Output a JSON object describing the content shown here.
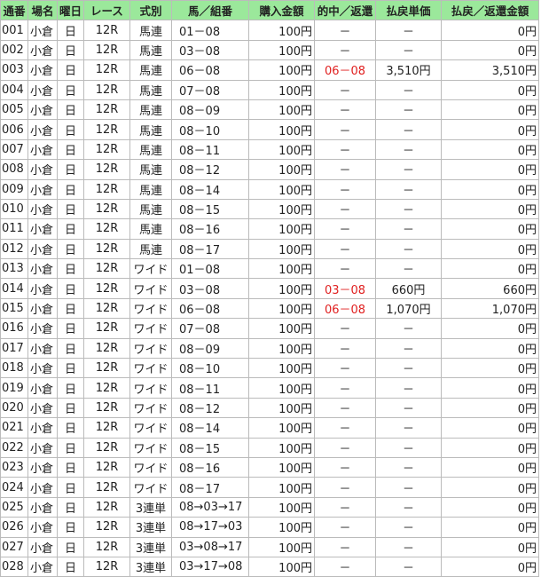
{
  "table": {
    "headers": [
      "通番",
      "場名",
      "曜日",
      "レース",
      "式別",
      "馬／組番",
      "購入金額",
      "的中／返還",
      "払戻単価",
      "払戻／返還金額"
    ],
    "rows": [
      [
        "001",
        "小倉",
        "日",
        "12R",
        "馬連",
        "01－08",
        "100円",
        "－",
        "－",
        "0円"
      ],
      [
        "002",
        "小倉",
        "日",
        "12R",
        "馬連",
        "03－08",
        "100円",
        "－",
        "－",
        "0円"
      ],
      [
        "003",
        "小倉",
        "日",
        "12R",
        "馬連",
        "06－08",
        "100円",
        "06－08",
        "3,510円",
        "3,510円"
      ],
      [
        "004",
        "小倉",
        "日",
        "12R",
        "馬連",
        "07－08",
        "100円",
        "－",
        "－",
        "0円"
      ],
      [
        "005",
        "小倉",
        "日",
        "12R",
        "馬連",
        "08－09",
        "100円",
        "－",
        "－",
        "0円"
      ],
      [
        "006",
        "小倉",
        "日",
        "12R",
        "馬連",
        "08－10",
        "100円",
        "－",
        "－",
        "0円"
      ],
      [
        "007",
        "小倉",
        "日",
        "12R",
        "馬連",
        "08－11",
        "100円",
        "－",
        "－",
        "0円"
      ],
      [
        "008",
        "小倉",
        "日",
        "12R",
        "馬連",
        "08－12",
        "100円",
        "－",
        "－",
        "0円"
      ],
      [
        "009",
        "小倉",
        "日",
        "12R",
        "馬連",
        "08－14",
        "100円",
        "－",
        "－",
        "0円"
      ],
      [
        "010",
        "小倉",
        "日",
        "12R",
        "馬連",
        "08－15",
        "100円",
        "－",
        "－",
        "0円"
      ],
      [
        "011",
        "小倉",
        "日",
        "12R",
        "馬連",
        "08－16",
        "100円",
        "－",
        "－",
        "0円"
      ],
      [
        "012",
        "小倉",
        "日",
        "12R",
        "馬連",
        "08－17",
        "100円",
        "－",
        "－",
        "0円"
      ],
      [
        "013",
        "小倉",
        "日",
        "12R",
        "ワイド",
        "01－08",
        "100円",
        "－",
        "－",
        "0円"
      ],
      [
        "014",
        "小倉",
        "日",
        "12R",
        "ワイド",
        "03－08",
        "100円",
        "03－08",
        "660円",
        "660円"
      ],
      [
        "015",
        "小倉",
        "日",
        "12R",
        "ワイド",
        "06－08",
        "100円",
        "06－08",
        "1,070円",
        "1,070円"
      ],
      [
        "016",
        "小倉",
        "日",
        "12R",
        "ワイド",
        "07－08",
        "100円",
        "－",
        "－",
        "0円"
      ],
      [
        "017",
        "小倉",
        "日",
        "12R",
        "ワイド",
        "08－09",
        "100円",
        "－",
        "－",
        "0円"
      ],
      [
        "018",
        "小倉",
        "日",
        "12R",
        "ワイド",
        "08－10",
        "100円",
        "－",
        "－",
        "0円"
      ],
      [
        "019",
        "小倉",
        "日",
        "12R",
        "ワイド",
        "08－11",
        "100円",
        "－",
        "－",
        "0円"
      ],
      [
        "020",
        "小倉",
        "日",
        "12R",
        "ワイド",
        "08－12",
        "100円",
        "－",
        "－",
        "0円"
      ],
      [
        "021",
        "小倉",
        "日",
        "12R",
        "ワイド",
        "08－14",
        "100円",
        "－",
        "－",
        "0円"
      ],
      [
        "022",
        "小倉",
        "日",
        "12R",
        "ワイド",
        "08－15",
        "100円",
        "－",
        "－",
        "0円"
      ],
      [
        "023",
        "小倉",
        "日",
        "12R",
        "ワイド",
        "08－16",
        "100円",
        "－",
        "－",
        "0円"
      ],
      [
        "024",
        "小倉",
        "日",
        "12R",
        "ワイド",
        "08－17",
        "100円",
        "－",
        "－",
        "0円"
      ],
      [
        "025",
        "小倉",
        "日",
        "12R",
        "3連単",
        "08→03→17",
        "100円",
        "－",
        "－",
        "0円"
      ],
      [
        "026",
        "小倉",
        "日",
        "12R",
        "3連単",
        "08→17→03",
        "100円",
        "－",
        "－",
        "0円"
      ],
      [
        "027",
        "小倉",
        "日",
        "12R",
        "3連単",
        "03→08→17",
        "100円",
        "－",
        "－",
        "0円"
      ],
      [
        "028",
        "小倉",
        "日",
        "12R",
        "3連単",
        "03→17→08",
        "100円",
        "－",
        "－",
        "0円"
      ]
    ]
  },
  "colors": {
    "header_bg": "#9be89b",
    "hit_text": "#e02020"
  }
}
